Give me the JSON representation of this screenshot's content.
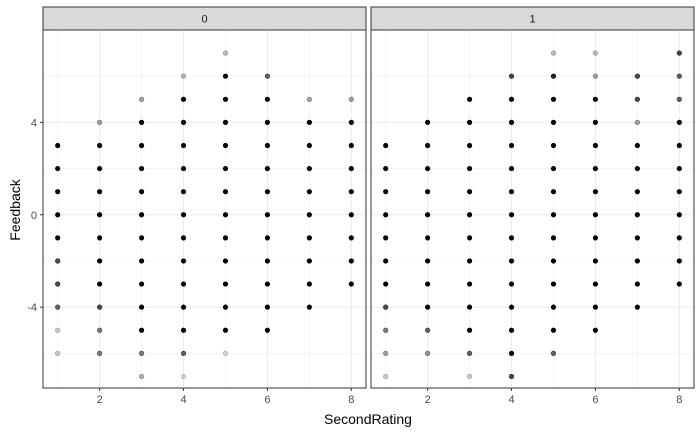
{
  "chart_data": {
    "type": "scatter",
    "xlabel": "SecondRating",
    "ylabel": "Feedback",
    "xlim": [
      0.65,
      8.35
    ],
    "ylim": [
      -7.5,
      8.0
    ],
    "x_ticks": [
      2,
      4,
      6,
      8
    ],
    "y_ticks": [
      -4,
      0,
      4
    ],
    "grid": true,
    "colors": {
      "point": "#000000",
      "strip_fill": "#d9d9d9",
      "panel_border": "#333333",
      "grid": "#ebebeb"
    },
    "facets": [
      {
        "label": "0",
        "points": [
          {
            "x": 1,
            "y": 3,
            "a": 1
          },
          {
            "x": 1,
            "y": 2,
            "a": 1
          },
          {
            "x": 1,
            "y": 1,
            "a": 1
          },
          {
            "x": 1,
            "y": 0,
            "a": 1
          },
          {
            "x": 1,
            "y": -1,
            "a": 1
          },
          {
            "x": 1,
            "y": -2,
            "a": 0.7
          },
          {
            "x": 1,
            "y": -3,
            "a": 0.7
          },
          {
            "x": 1,
            "y": -4,
            "a": 0.6
          },
          {
            "x": 1,
            "y": -5,
            "a": 0.2
          },
          {
            "x": 1,
            "y": -6,
            "a": 0.2
          },
          {
            "x": 2,
            "y": 4,
            "a": 0.35
          },
          {
            "x": 2,
            "y": 3,
            "a": 1
          },
          {
            "x": 2,
            "y": 2,
            "a": 1
          },
          {
            "x": 2,
            "y": 1,
            "a": 1
          },
          {
            "x": 2,
            "y": 0,
            "a": 1
          },
          {
            "x": 2,
            "y": -1,
            "a": 1
          },
          {
            "x": 2,
            "y": -2,
            "a": 1
          },
          {
            "x": 2,
            "y": -3,
            "a": 1
          },
          {
            "x": 2,
            "y": -4,
            "a": 0.7
          },
          {
            "x": 2,
            "y": -5,
            "a": 0.5
          },
          {
            "x": 2,
            "y": -6,
            "a": 0.5
          },
          {
            "x": 3,
            "y": 5,
            "a": 0.35
          },
          {
            "x": 3,
            "y": 4,
            "a": 1
          },
          {
            "x": 3,
            "y": 3,
            "a": 1
          },
          {
            "x": 3,
            "y": 2,
            "a": 1
          },
          {
            "x": 3,
            "y": 1,
            "a": 1
          },
          {
            "x": 3,
            "y": 0,
            "a": 1
          },
          {
            "x": 3,
            "y": -1,
            "a": 1
          },
          {
            "x": 3,
            "y": -2,
            "a": 1
          },
          {
            "x": 3,
            "y": -3,
            "a": 1
          },
          {
            "x": 3,
            "y": -4,
            "a": 1
          },
          {
            "x": 3,
            "y": -5,
            "a": 1
          },
          {
            "x": 3,
            "y": -6,
            "a": 0.5
          },
          {
            "x": 3,
            "y": -7,
            "a": 0.3
          },
          {
            "x": 4,
            "y": 6,
            "a": 0.25
          },
          {
            "x": 4,
            "y": 5,
            "a": 1
          },
          {
            "x": 4,
            "y": 4,
            "a": 1
          },
          {
            "x": 4,
            "y": 3,
            "a": 1
          },
          {
            "x": 4,
            "y": 2,
            "a": 1
          },
          {
            "x": 4,
            "y": 1,
            "a": 1
          },
          {
            "x": 4,
            "y": 0,
            "a": 1
          },
          {
            "x": 4,
            "y": -1,
            "a": 1
          },
          {
            "x": 4,
            "y": -2,
            "a": 1
          },
          {
            "x": 4,
            "y": -3,
            "a": 1
          },
          {
            "x": 4,
            "y": -4,
            "a": 1
          },
          {
            "x": 4,
            "y": -5,
            "a": 1
          },
          {
            "x": 4,
            "y": -6,
            "a": 0.6
          },
          {
            "x": 4,
            "y": -7,
            "a": 0.15
          },
          {
            "x": 5,
            "y": 7,
            "a": 0.25
          },
          {
            "x": 5,
            "y": 6,
            "a": 1
          },
          {
            "x": 5,
            "y": 5,
            "a": 1
          },
          {
            "x": 5,
            "y": 4,
            "a": 1
          },
          {
            "x": 5,
            "y": 3,
            "a": 1
          },
          {
            "x": 5,
            "y": 2,
            "a": 1
          },
          {
            "x": 5,
            "y": 1,
            "a": 1
          },
          {
            "x": 5,
            "y": 0,
            "a": 1
          },
          {
            "x": 5,
            "y": -1,
            "a": 1
          },
          {
            "x": 5,
            "y": -2,
            "a": 1
          },
          {
            "x": 5,
            "y": -3,
            "a": 1
          },
          {
            "x": 5,
            "y": -4,
            "a": 1
          },
          {
            "x": 5,
            "y": -5,
            "a": 1
          },
          {
            "x": 5,
            "y": -6,
            "a": 0.15
          },
          {
            "x": 6,
            "y": 6,
            "a": 0.6
          },
          {
            "x": 6,
            "y": 5,
            "a": 1
          },
          {
            "x": 6,
            "y": 4,
            "a": 1
          },
          {
            "x": 6,
            "y": 3,
            "a": 1
          },
          {
            "x": 6,
            "y": 2,
            "a": 1
          },
          {
            "x": 6,
            "y": 1,
            "a": 1
          },
          {
            "x": 6,
            "y": 0,
            "a": 1
          },
          {
            "x": 6,
            "y": -1,
            "a": 1
          },
          {
            "x": 6,
            "y": -2,
            "a": 1
          },
          {
            "x": 6,
            "y": -3,
            "a": 1
          },
          {
            "x": 6,
            "y": -4,
            "a": 1
          },
          {
            "x": 6,
            "y": -5,
            "a": 1
          },
          {
            "x": 7,
            "y": 5,
            "a": 0.35
          },
          {
            "x": 7,
            "y": 4,
            "a": 1
          },
          {
            "x": 7,
            "y": 3,
            "a": 1
          },
          {
            "x": 7,
            "y": 2,
            "a": 1
          },
          {
            "x": 7,
            "y": 1,
            "a": 1
          },
          {
            "x": 7,
            "y": 0,
            "a": 1
          },
          {
            "x": 7,
            "y": -1,
            "a": 1
          },
          {
            "x": 7,
            "y": -2,
            "a": 1
          },
          {
            "x": 7,
            "y": -3,
            "a": 1
          },
          {
            "x": 7,
            "y": -4,
            "a": 1
          },
          {
            "x": 8,
            "y": 5,
            "a": 0.35
          },
          {
            "x": 8,
            "y": 4,
            "a": 1
          },
          {
            "x": 8,
            "y": 3,
            "a": 1
          },
          {
            "x": 8,
            "y": 2,
            "a": 1
          },
          {
            "x": 8,
            "y": 1,
            "a": 1
          },
          {
            "x": 8,
            "y": 0,
            "a": 1
          },
          {
            "x": 8,
            "y": -1,
            "a": 1
          },
          {
            "x": 8,
            "y": -2,
            "a": 1
          },
          {
            "x": 8,
            "y": -3,
            "a": 1
          }
        ]
      },
      {
        "label": "1",
        "points": [
          {
            "x": 1,
            "y": 3,
            "a": 1
          },
          {
            "x": 1,
            "y": 2,
            "a": 1
          },
          {
            "x": 1,
            "y": 1,
            "a": 1
          },
          {
            "x": 1,
            "y": 0,
            "a": 1
          },
          {
            "x": 1,
            "y": -1,
            "a": 1
          },
          {
            "x": 1,
            "y": -2,
            "a": 1
          },
          {
            "x": 1,
            "y": -3,
            "a": 1
          },
          {
            "x": 1,
            "y": -4,
            "a": 0.7
          },
          {
            "x": 1,
            "y": -5,
            "a": 0.5
          },
          {
            "x": 1,
            "y": -6,
            "a": 0.35
          },
          {
            "x": 1,
            "y": -7,
            "a": 0.2
          },
          {
            "x": 2,
            "y": 4,
            "a": 1
          },
          {
            "x": 2,
            "y": 3,
            "a": 1
          },
          {
            "x": 2,
            "y": 2,
            "a": 1
          },
          {
            "x": 2,
            "y": 1,
            "a": 1
          },
          {
            "x": 2,
            "y": 0,
            "a": 1
          },
          {
            "x": 2,
            "y": -1,
            "a": 1
          },
          {
            "x": 2,
            "y": -2,
            "a": 1
          },
          {
            "x": 2,
            "y": -3,
            "a": 1
          },
          {
            "x": 2,
            "y": -4,
            "a": 1
          },
          {
            "x": 2,
            "y": -5,
            "a": 0.6
          },
          {
            "x": 2,
            "y": -6,
            "a": 0.4
          },
          {
            "x": 3,
            "y": 5,
            "a": 1
          },
          {
            "x": 3,
            "y": 4,
            "a": 1
          },
          {
            "x": 3,
            "y": 3,
            "a": 1
          },
          {
            "x": 3,
            "y": 2,
            "a": 1
          },
          {
            "x": 3,
            "y": 1,
            "a": 1
          },
          {
            "x": 3,
            "y": 0,
            "a": 1
          },
          {
            "x": 3,
            "y": -1,
            "a": 1
          },
          {
            "x": 3,
            "y": -2,
            "a": 1
          },
          {
            "x": 3,
            "y": -3,
            "a": 1
          },
          {
            "x": 3,
            "y": -4,
            "a": 1
          },
          {
            "x": 3,
            "y": -5,
            "a": 1
          },
          {
            "x": 3,
            "y": -6,
            "a": 0.6
          },
          {
            "x": 3,
            "y": -7,
            "a": 0.2
          },
          {
            "x": 4,
            "y": 6,
            "a": 0.7
          },
          {
            "x": 4,
            "y": 5,
            "a": 1
          },
          {
            "x": 4,
            "y": 4,
            "a": 1
          },
          {
            "x": 4,
            "y": 3,
            "a": 1
          },
          {
            "x": 4,
            "y": 2,
            "a": 1
          },
          {
            "x": 4,
            "y": 1,
            "a": 1
          },
          {
            "x": 4,
            "y": 0,
            "a": 1
          },
          {
            "x": 4,
            "y": -1,
            "a": 1
          },
          {
            "x": 4,
            "y": -2,
            "a": 1
          },
          {
            "x": 4,
            "y": -3,
            "a": 1
          },
          {
            "x": 4,
            "y": -4,
            "a": 1
          },
          {
            "x": 4,
            "y": -5,
            "a": 1
          },
          {
            "x": 4,
            "y": -6,
            "a": 1
          },
          {
            "x": 4,
            "y": -7,
            "a": 0.7
          },
          {
            "x": 5,
            "y": 7,
            "a": 0.25
          },
          {
            "x": 5,
            "y": 6,
            "a": 0.85
          },
          {
            "x": 5,
            "y": 5,
            "a": 1
          },
          {
            "x": 5,
            "y": 4,
            "a": 1
          },
          {
            "x": 5,
            "y": 3,
            "a": 1
          },
          {
            "x": 5,
            "y": 2,
            "a": 1
          },
          {
            "x": 5,
            "y": 1,
            "a": 1
          },
          {
            "x": 5,
            "y": 0,
            "a": 1
          },
          {
            "x": 5,
            "y": -1,
            "a": 1
          },
          {
            "x": 5,
            "y": -2,
            "a": 1
          },
          {
            "x": 5,
            "y": -3,
            "a": 1
          },
          {
            "x": 5,
            "y": -4,
            "a": 1
          },
          {
            "x": 5,
            "y": -5,
            "a": 1
          },
          {
            "x": 5,
            "y": -6,
            "a": 0.6
          },
          {
            "x": 6,
            "y": 7,
            "a": 0.25
          },
          {
            "x": 6,
            "y": 6,
            "a": 0.35
          },
          {
            "x": 6,
            "y": 5,
            "a": 1
          },
          {
            "x": 6,
            "y": 4,
            "a": 1
          },
          {
            "x": 6,
            "y": 3,
            "a": 1
          },
          {
            "x": 6,
            "y": 2,
            "a": 1
          },
          {
            "x": 6,
            "y": 1,
            "a": 1
          },
          {
            "x": 6,
            "y": 0,
            "a": 1
          },
          {
            "x": 6,
            "y": -1,
            "a": 1
          },
          {
            "x": 6,
            "y": -2,
            "a": 1
          },
          {
            "x": 6,
            "y": -3,
            "a": 1
          },
          {
            "x": 6,
            "y": -4,
            "a": 1
          },
          {
            "x": 6,
            "y": -5,
            "a": 1
          },
          {
            "x": 7,
            "y": 6,
            "a": 0.7
          },
          {
            "x": 7,
            "y": 5,
            "a": 0.7
          },
          {
            "x": 7,
            "y": 4,
            "a": 0.35
          },
          {
            "x": 7,
            "y": 3,
            "a": 1
          },
          {
            "x": 7,
            "y": 2,
            "a": 1
          },
          {
            "x": 7,
            "y": 1,
            "a": 1
          },
          {
            "x": 7,
            "y": 0,
            "a": 1
          },
          {
            "x": 7,
            "y": -1,
            "a": 1
          },
          {
            "x": 7,
            "y": -2,
            "a": 1
          },
          {
            "x": 7,
            "y": -3,
            "a": 1
          },
          {
            "x": 7,
            "y": -4,
            "a": 1
          },
          {
            "x": 8,
            "y": 7,
            "a": 0.7
          },
          {
            "x": 8,
            "y": 6,
            "a": 0.6
          },
          {
            "x": 8,
            "y": 5,
            "a": 0.6
          },
          {
            "x": 8,
            "y": 4,
            "a": 1
          },
          {
            "x": 8,
            "y": 3,
            "a": 1
          },
          {
            "x": 8,
            "y": 2,
            "a": 1
          },
          {
            "x": 8,
            "y": 1,
            "a": 1
          },
          {
            "x": 8,
            "y": 0,
            "a": 1
          },
          {
            "x": 8,
            "y": -1,
            "a": 1
          },
          {
            "x": 8,
            "y": -2,
            "a": 1
          },
          {
            "x": 8,
            "y": -3,
            "a": 1
          }
        ]
      }
    ]
  }
}
